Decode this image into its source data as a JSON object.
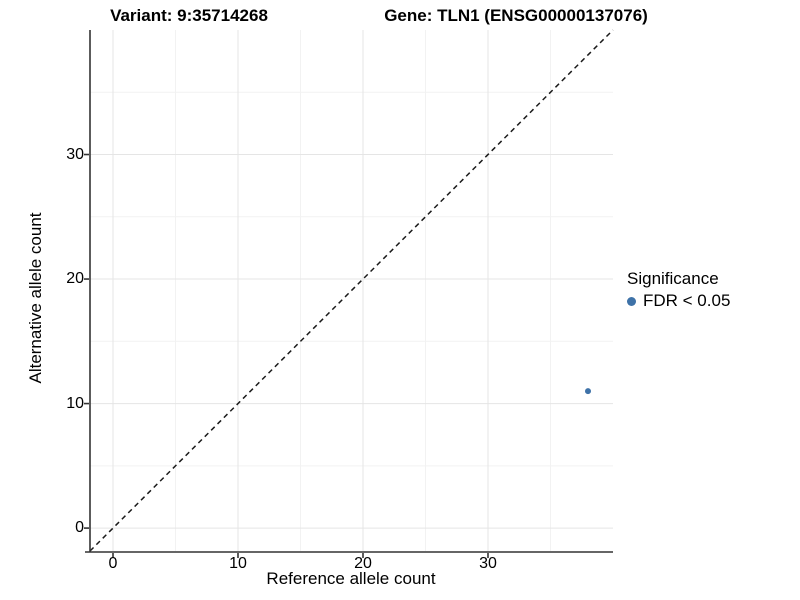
{
  "titles": {
    "left": "Variant: 9:35714268",
    "right": "Gene: TLN1 (ENSG00000137076)"
  },
  "x_axis": {
    "label": "Reference allele count"
  },
  "y_axis": {
    "label": "Alternative allele count"
  },
  "legend": {
    "title": "Significance",
    "items": [
      {
        "label": "FDR < 0.05",
        "color": "#3E72A8"
      }
    ]
  },
  "chart_data": {
    "type": "scatter",
    "title_left": "Variant: 9:35714268",
    "title_right": "Gene: TLN1 (ENSG00000137076)",
    "xlabel": "Reference allele count",
    "ylabel": "Alternative allele count",
    "xlim": [
      -1.84,
      40
    ],
    "ylim": [
      -1.84,
      40
    ],
    "x_ticks": [
      0,
      10,
      20,
      30
    ],
    "y_ticks": [
      0,
      10,
      20,
      30
    ],
    "x_minor": [
      5,
      15,
      25,
      35
    ],
    "y_minor": [
      5,
      15,
      25,
      35
    ],
    "grid": "major+minor",
    "legend_position": "right",
    "series": [
      {
        "name": "FDR < 0.05",
        "color": "#3E72A8",
        "point_radius": 3,
        "points": [
          {
            "x": 38,
            "y": 11
          }
        ]
      }
    ],
    "reference_line": {
      "type": "identity y=x",
      "style": "dashed",
      "color": "#1a1a1a"
    }
  }
}
